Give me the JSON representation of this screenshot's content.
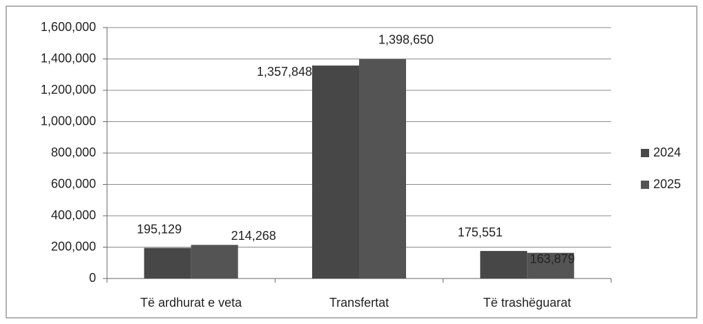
{
  "chart_data": {
    "type": "bar",
    "categories": [
      "Të ardhurat e veta",
      "Transfertat",
      "Të trashëguarat"
    ],
    "series": [
      {
        "name": "2024",
        "color": "#474747",
        "values": [
          195129,
          1357848,
          175551
        ],
        "value_labels": [
          "195,129",
          "1,357,848",
          "175,551"
        ]
      },
      {
        "name": "2025",
        "color": "#545454",
        "values": [
          214268,
          1398650,
          163879
        ],
        "value_labels": [
          "214,268",
          "1,398,650",
          "163,879"
        ]
      }
    ],
    "ylim": [
      0,
      1600000
    ],
    "yticks": [
      0,
      {
        "value": 200000,
        "label": "200,000"
      },
      {
        "value": 400000,
        "label": "400,000"
      },
      {
        "value": 600000,
        "label": "600,000"
      },
      {
        "value": 800000,
        "label": "800,000"
      },
      {
        "value": 1000000,
        "label": "1,000,000"
      },
      {
        "value": 1200000,
        "label": "1,200,000"
      },
      {
        "value": 1400000,
        "label": "1,400,000"
      },
      {
        "value": 1600000,
        "label": "1,600,000"
      }
    ],
    "grid": true,
    "legend": "right"
  }
}
